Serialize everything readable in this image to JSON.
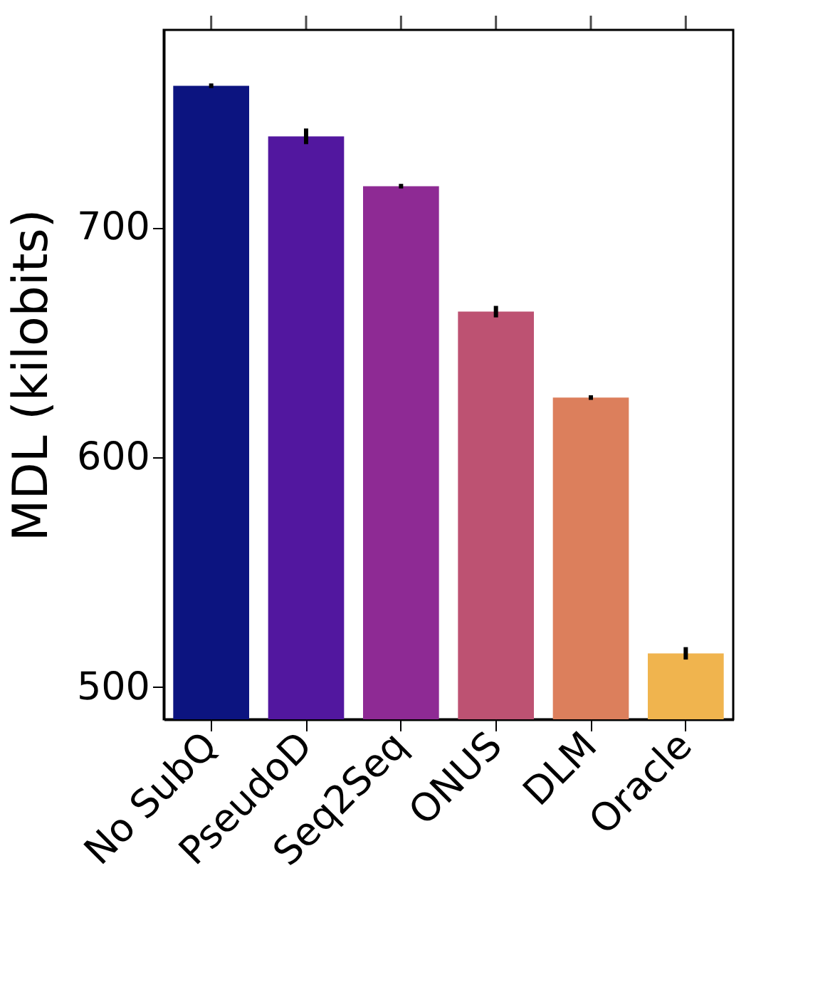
{
  "chart_data": {
    "type": "bar",
    "ylabel": "MDL (kilobits)",
    "categories": [
      "No SubQ",
      "PseudoD",
      "Seq2Seq",
      "ONUS",
      "DLM",
      "Oracle"
    ],
    "values": [
      761.7,
      739.7,
      718,
      663.4,
      626,
      514.7
    ],
    "errors": [
      1,
      3.4,
      1,
      2.5,
      1,
      2.7
    ],
    "colors": [
      "#0c1480",
      "#52179f",
      "#8e2a94",
      "#bd5272",
      "#dc7f5c",
      "#f0b44e"
    ],
    "ylim": [
      486,
      786
    ],
    "yticks": [
      500,
      600,
      700
    ],
    "grid": false
  }
}
